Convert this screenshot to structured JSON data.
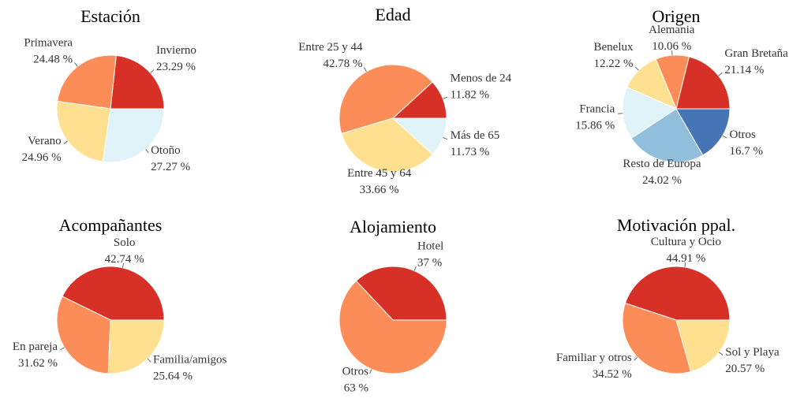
{
  "chart_data": [
    {
      "type": "pie",
      "title": "Estación",
      "categories": [
        "Invierno",
        "Primavera",
        "Verano",
        "Otoño"
      ],
      "values": [
        23.29,
        24.48,
        24.96,
        27.27
      ],
      "value_labels": [
        "23.29 %",
        "24.48 %",
        "24.96 %",
        "27.27 %"
      ],
      "colors": [
        "#d73027",
        "#fc8d59",
        "#fee090",
        "#e0f3f8"
      ]
    },
    {
      "type": "pie",
      "title": "Edad",
      "categories": [
        "Menos de 24",
        "Entre 25 y 44",
        "Entre 45 y 64",
        "Más de 65"
      ],
      "values": [
        11.82,
        42.78,
        33.66,
        11.73
      ],
      "value_labels": [
        "11.82 %",
        "42.78 %",
        "33.66 %",
        "11.73 %"
      ],
      "colors": [
        "#d73027",
        "#fc8d59",
        "#fee090",
        "#e0f3f8"
      ]
    },
    {
      "type": "pie",
      "title": "Origen",
      "categories": [
        "Gran Bretaña",
        "Alemania",
        "Benelux",
        "Francia",
        "Resto de Europa",
        "Otros"
      ],
      "values": [
        21.14,
        10.06,
        12.22,
        15.86,
        24.02,
        16.7
      ],
      "value_labels": [
        "21.14 %",
        "10.06 %",
        "12.22 %",
        "15.86 %",
        "24.02 %",
        "16.7 %"
      ],
      "colors": [
        "#d73027",
        "#fc8d59",
        "#fee090",
        "#e0f3f8",
        "#91bfdb",
        "#4575b4"
      ]
    },
    {
      "type": "pie",
      "title": "Acompañantes",
      "categories": [
        "Solo",
        "En pareja",
        "Familia/amigos"
      ],
      "values": [
        42.74,
        31.62,
        25.64
      ],
      "value_labels": [
        "42.74 %",
        "31.62 %",
        "25.64 %"
      ],
      "colors": [
        "#d73027",
        "#fc8d59",
        "#fee090"
      ]
    },
    {
      "type": "pie",
      "title": "Alojamiento",
      "categories": [
        "Hotel",
        "Otros"
      ],
      "values": [
        37,
        63
      ],
      "value_labels": [
        "37 %",
        "63 %"
      ],
      "colors": [
        "#d73027",
        "#fc8d59"
      ]
    },
    {
      "type": "pie",
      "title": "Motivación ppal.",
      "categories": [
        "Cultura y Ocio",
        "Familiar y otros",
        "Sol y Playa"
      ],
      "values": [
        44.91,
        34.52,
        20.57
      ],
      "value_labels": [
        "44.91 %",
        "34.52 %",
        "20.57 %"
      ],
      "colors": [
        "#d73027",
        "#fc8d59",
        "#fee090"
      ]
    }
  ]
}
